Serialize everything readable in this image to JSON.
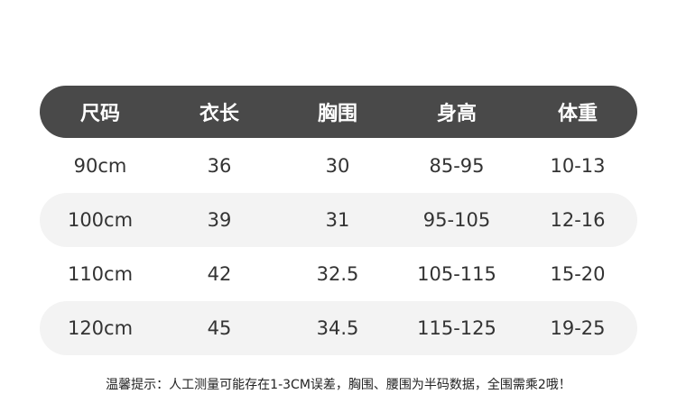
{
  "table": {
    "headers": [
      "尺码",
      "衣长",
      "胸围",
      "身高",
      "体重"
    ],
    "rows": [
      [
        "90cm",
        "36",
        "30",
        "85-95",
        "10-13"
      ],
      [
        "100cm",
        "39",
        "31",
        "95-105",
        "12-16"
      ],
      [
        "110cm",
        "42",
        "32.5",
        "105-115",
        "15-20"
      ],
      [
        "120cm",
        "45",
        "34.5",
        "115-125",
        "19-25"
      ]
    ]
  },
  "footer": {
    "note": "温馨提示：人工测量可能存在1-3CM误差，胸围、腰围为半码数据，全围需乘2哦！"
  },
  "colors": {
    "header_bg": "#494949",
    "stripe_bg": "#f3f3f3"
  }
}
